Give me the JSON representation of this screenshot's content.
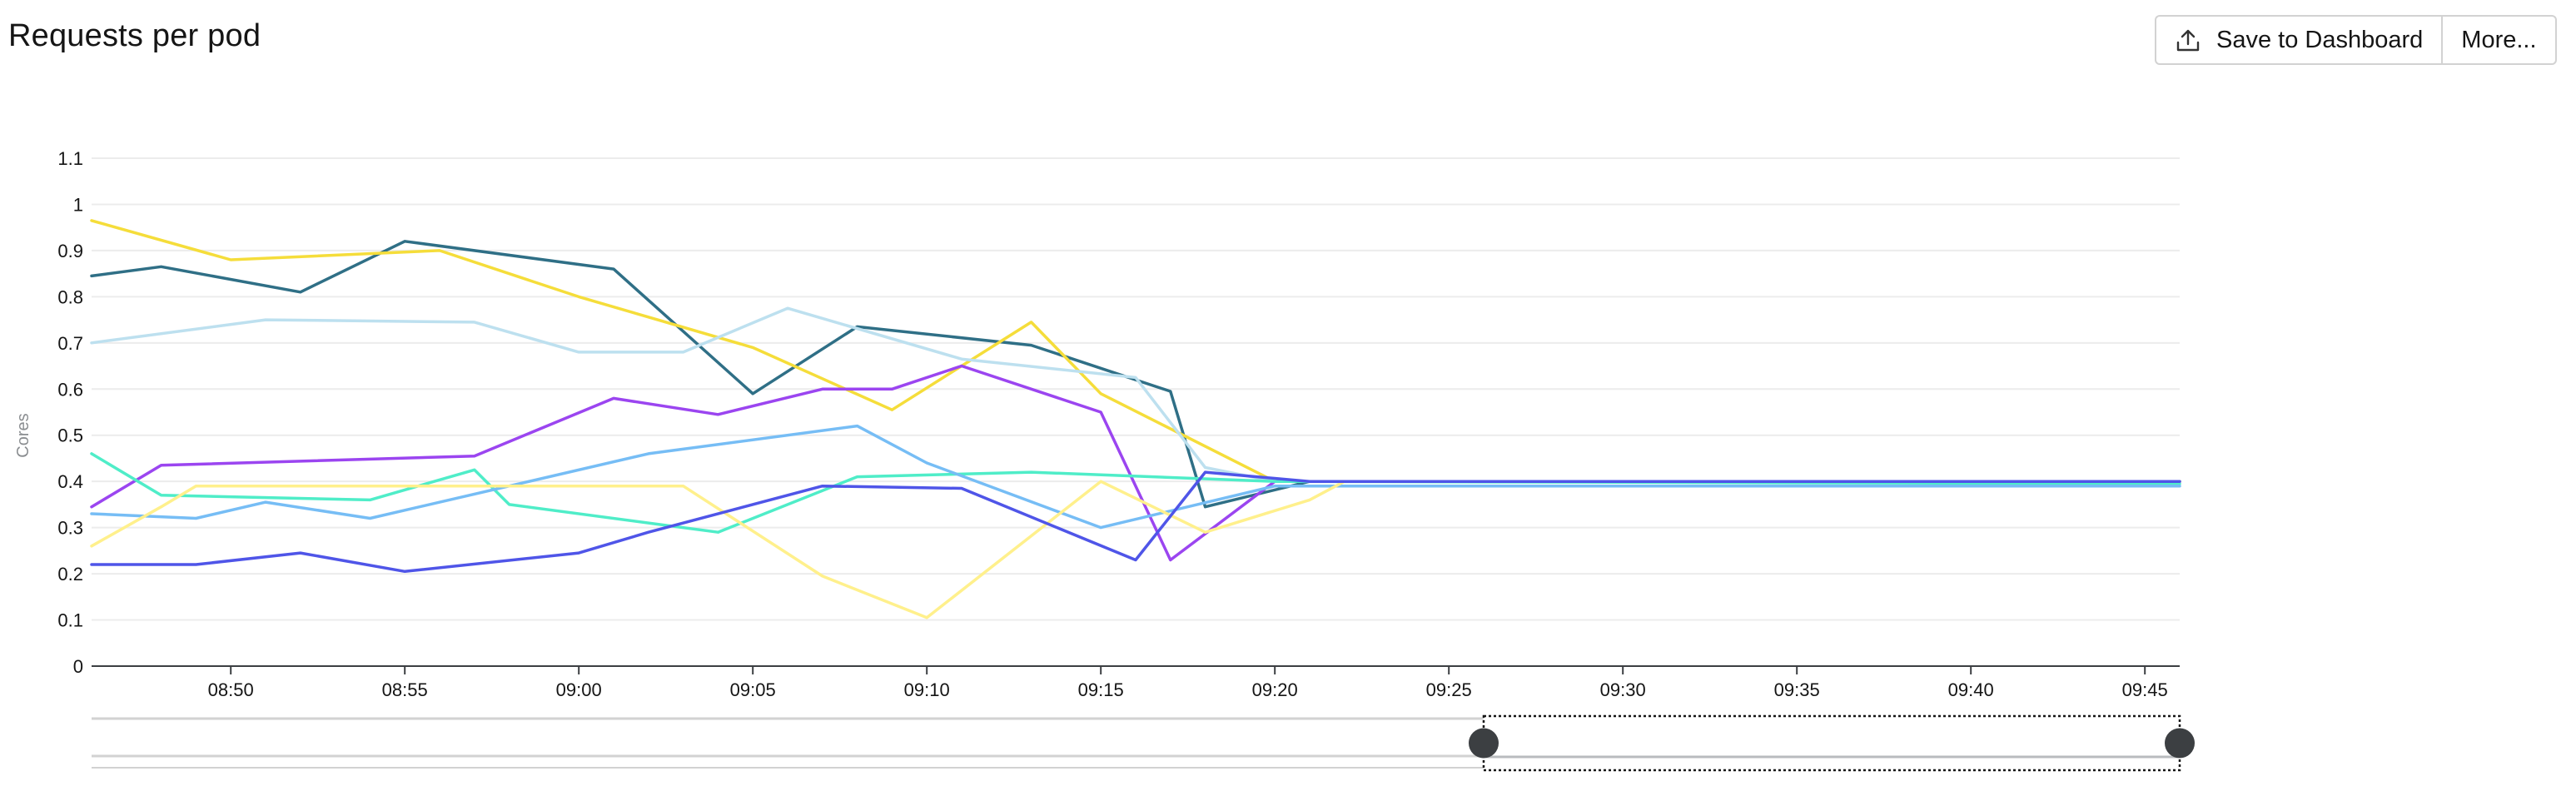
{
  "header": {
    "title": "Requests per pod",
    "save_button_label": "Save to Dashboard",
    "more_button_label": "More...",
    "save_icon": "upload-icon"
  },
  "chart_data": {
    "type": "line",
    "title": "Requests per pod",
    "xlabel": "",
    "ylabel": "Cores",
    "ylim": [
      0,
      1.1
    ],
    "yticks": [
      0,
      0.1,
      0.2,
      0.3,
      0.4,
      0.5,
      0.6,
      0.7,
      0.8,
      0.9,
      1,
      1.1
    ],
    "xlim": [
      "08:46",
      "09:46"
    ],
    "xticks": [
      "08:50",
      "08:55",
      "09:00",
      "09:05",
      "09:10",
      "09:15",
      "09:20",
      "09:25",
      "09:30",
      "09:35",
      "09:40",
      "09:45"
    ],
    "grid": true,
    "legend": "none",
    "series": [
      {
        "color": "#2f6f86",
        "points": [
          [
            "08:46",
            0.845
          ],
          [
            "08:48",
            0.865
          ],
          [
            "08:52",
            0.81
          ],
          [
            "08:55",
            0.92
          ],
          [
            "09:01",
            0.86
          ],
          [
            "09:05",
            0.59
          ],
          [
            "09:08",
            0.735
          ],
          [
            "09:13",
            0.695
          ],
          [
            "09:17",
            0.595
          ],
          [
            "09:18",
            0.345
          ],
          [
            "09:21",
            0.4
          ],
          [
            "09:46",
            0.4
          ]
        ]
      },
      {
        "color": "#f5dd3a",
        "points": [
          [
            "08:46",
            0.965
          ],
          [
            "08:50",
            0.88
          ],
          [
            "08:56",
            0.9
          ],
          [
            "09:00",
            0.8
          ],
          [
            "09:05",
            0.69
          ],
          [
            "09:09",
            0.555
          ],
          [
            "09:13",
            0.745
          ],
          [
            "09:15",
            0.59
          ],
          [
            "09:20",
            0.4
          ],
          [
            "09:46",
            0.4
          ]
        ]
      },
      {
        "color": "#bde0ef",
        "points": [
          [
            "08:46",
            0.7
          ],
          [
            "08:51",
            0.75
          ],
          [
            "08:57",
            0.745
          ],
          [
            "09:00",
            0.68
          ],
          [
            "09:03",
            0.68
          ],
          [
            "09:06",
            0.775
          ],
          [
            "09:11",
            0.665
          ],
          [
            "09:16",
            0.625
          ],
          [
            "09:18",
            0.43
          ],
          [
            "09:20",
            0.4
          ],
          [
            "09:46",
            0.4
          ]
        ]
      },
      {
        "color": "#9b45f0",
        "points": [
          [
            "08:46",
            0.345
          ],
          [
            "08:48",
            0.435
          ],
          [
            "08:57",
            0.455
          ],
          [
            "09:01",
            0.58
          ],
          [
            "09:04",
            0.545
          ],
          [
            "09:07",
            0.6
          ],
          [
            "09:09",
            0.6
          ],
          [
            "09:11",
            0.65
          ],
          [
            "09:15",
            0.55
          ],
          [
            "09:17",
            0.23
          ],
          [
            "09:20",
            0.4
          ],
          [
            "09:46",
            0.4
          ]
        ]
      },
      {
        "color": "#4fedc8",
        "points": [
          [
            "08:46",
            0.46
          ],
          [
            "08:48",
            0.37
          ],
          [
            "08:54",
            0.36
          ],
          [
            "08:57",
            0.425
          ],
          [
            "08:58",
            0.35
          ],
          [
            "09:04",
            0.29
          ],
          [
            "09:08",
            0.41
          ],
          [
            "09:13",
            0.42
          ],
          [
            "09:20",
            0.4
          ],
          [
            "09:46",
            0.395
          ]
        ]
      },
      {
        "color": "#76bdf5",
        "points": [
          [
            "08:46",
            0.33
          ],
          [
            "08:49",
            0.32
          ],
          [
            "08:51",
            0.355
          ],
          [
            "08:54",
            0.32
          ],
          [
            "09:02",
            0.46
          ],
          [
            "09:08",
            0.52
          ],
          [
            "09:10",
            0.44
          ],
          [
            "09:15",
            0.3
          ],
          [
            "09:20",
            0.39
          ],
          [
            "09:46",
            0.39
          ]
        ]
      },
      {
        "color": "#fff08c",
        "points": [
          [
            "08:46",
            0.26
          ],
          [
            "08:48",
            0.345
          ],
          [
            "08:49",
            0.39
          ],
          [
            "09:03",
            0.39
          ],
          [
            "09:07",
            0.195
          ],
          [
            "09:10",
            0.105
          ],
          [
            "09:15",
            0.4
          ],
          [
            "09:18",
            0.29
          ],
          [
            "09:21",
            0.36
          ],
          [
            "09:22",
            0.4
          ],
          [
            "09:46",
            0.4
          ]
        ]
      },
      {
        "color": "#4f55e8",
        "points": [
          [
            "08:46",
            0.22
          ],
          [
            "08:49",
            0.22
          ],
          [
            "08:52",
            0.245
          ],
          [
            "08:55",
            0.205
          ],
          [
            "09:00",
            0.245
          ],
          [
            "09:02",
            0.29
          ],
          [
            "09:07",
            0.39
          ],
          [
            "09:11",
            0.385
          ],
          [
            "09:16",
            0.23
          ],
          [
            "09:18",
            0.42
          ],
          [
            "09:21",
            0.4
          ],
          [
            "09:46",
            0.4
          ]
        ]
      }
    ],
    "brush_selection": [
      "09:26",
      "09:46"
    ]
  }
}
